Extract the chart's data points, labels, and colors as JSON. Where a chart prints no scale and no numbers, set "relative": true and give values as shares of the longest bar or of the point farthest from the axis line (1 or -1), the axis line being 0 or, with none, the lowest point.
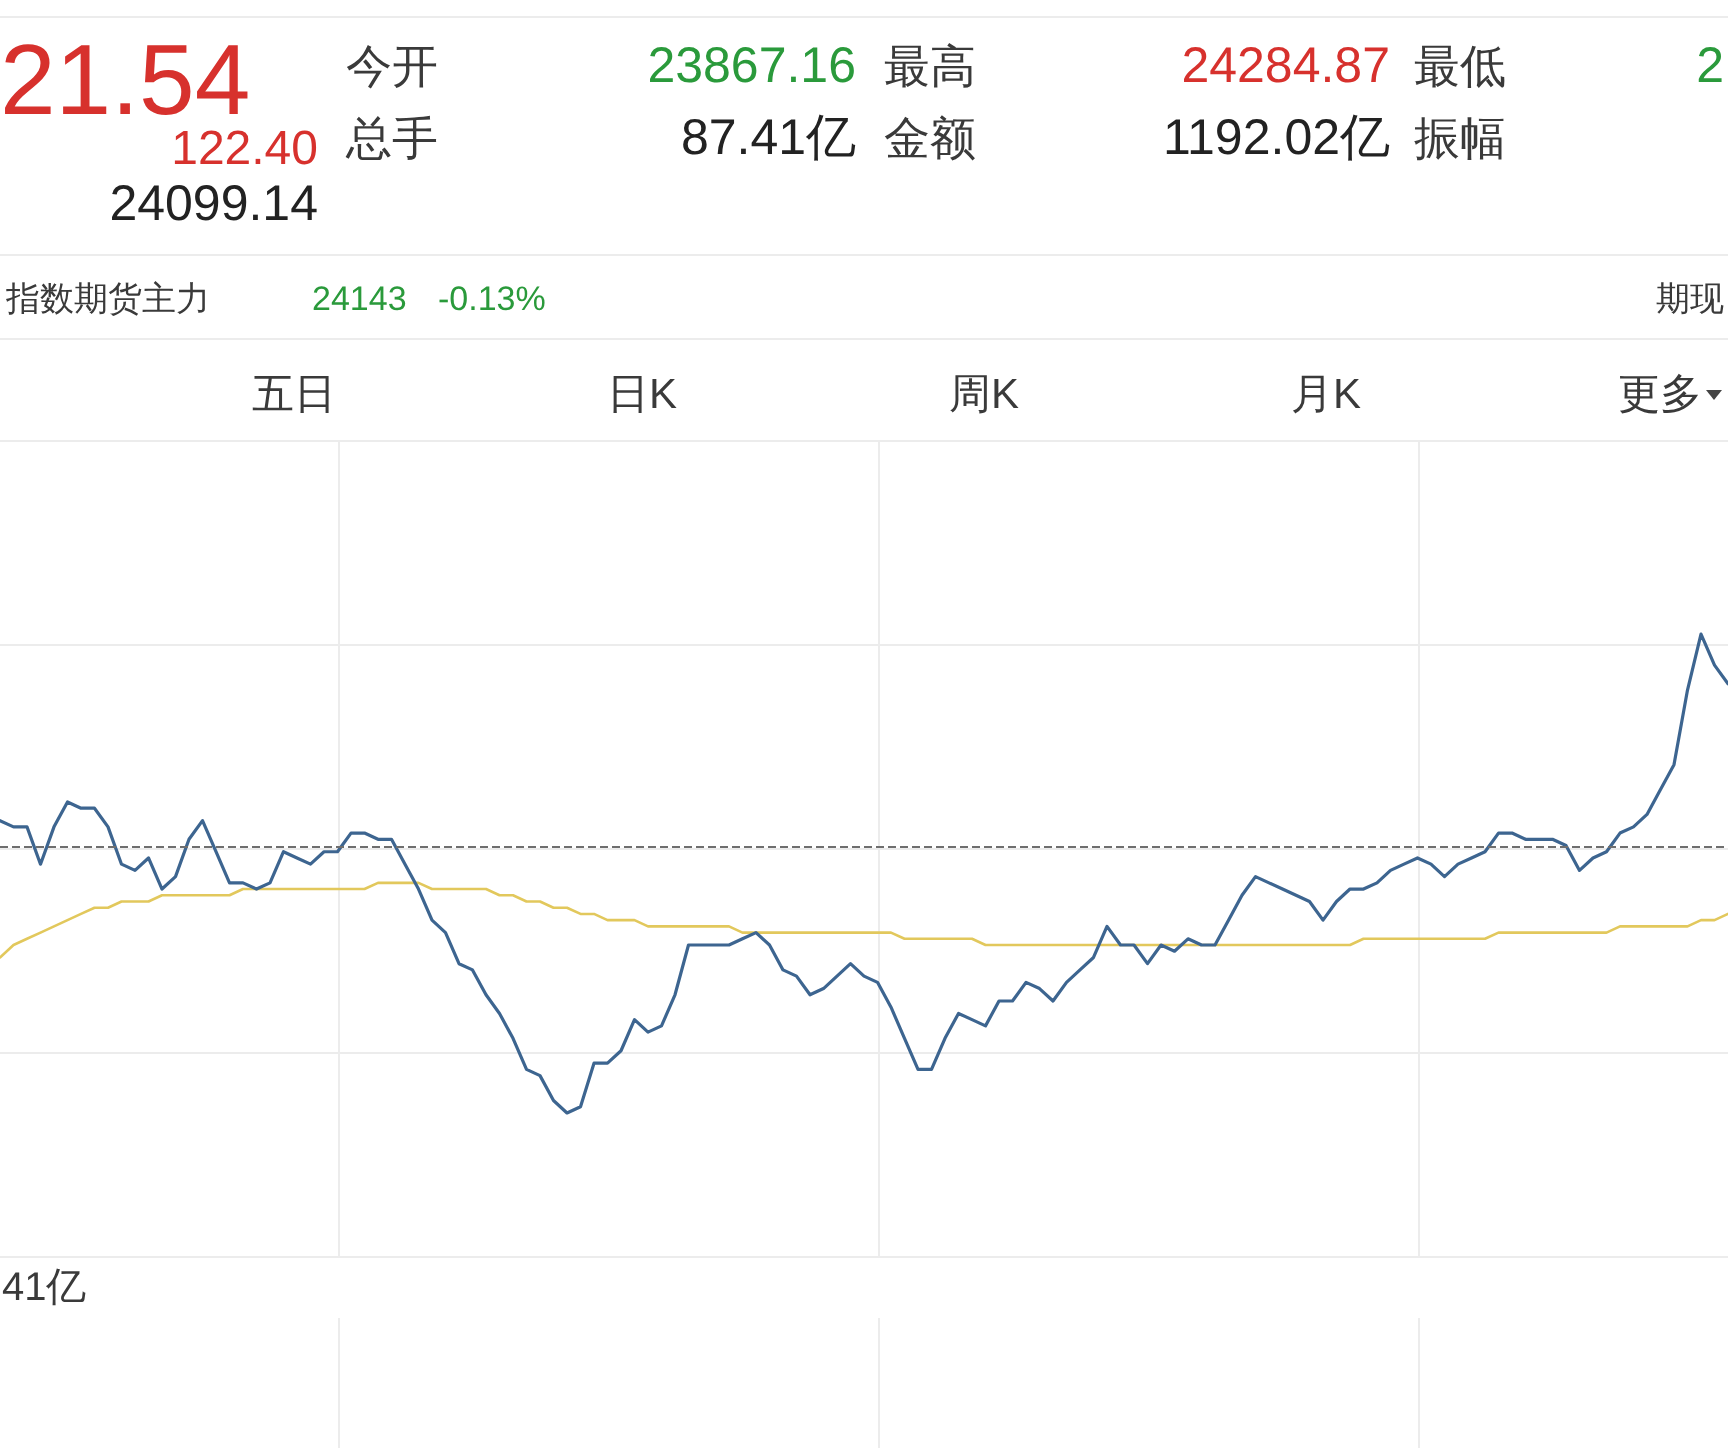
{
  "chart_data": {
    "type": "line",
    "relative": true,
    "grid": true,
    "categories": [
      null,
      null,
      null,
      null,
      null,
      null,
      null,
      null,
      null,
      null,
      null,
      null,
      null,
      null,
      null,
      null,
      null,
      null,
      null,
      null,
      null,
      null,
      null,
      null,
      null,
      null,
      null,
      null,
      null,
      null,
      null,
      null,
      null,
      null,
      null,
      null,
      null,
      null,
      null,
      null,
      null,
      null,
      null,
      null,
      null,
      null,
      null,
      null,
      null,
      null,
      null,
      null,
      null,
      null,
      null,
      null,
      null,
      null,
      null,
      null,
      null,
      null,
      null,
      null,
      null,
      null,
      null,
      null,
      null,
      null,
      null,
      null,
      null,
      null,
      null,
      null,
      null,
      null,
      null,
      null,
      null,
      null,
      null,
      null,
      null,
      null,
      null,
      null,
      null,
      null,
      null,
      null,
      null,
      null,
      null,
      null,
      null,
      null,
      null,
      null,
      null,
      null,
      null,
      null,
      null,
      null,
      null,
      null,
      null,
      null,
      null,
      null,
      null,
      null,
      null,
      null,
      null,
      null,
      null,
      null,
      null,
      null,
      null,
      null,
      null,
      null,
      null,
      null,
      null
    ],
    "series": [
      {
        "color": "#3d6590",
        "values": [
          0.7,
          0.69,
          0.69,
          0.63,
          0.69,
          0.73,
          0.72,
          0.72,
          0.69,
          0.63,
          0.62,
          0.64,
          0.59,
          0.61,
          0.67,
          0.7,
          0.65,
          0.6,
          0.6,
          0.59,
          0.6,
          0.65,
          0.64,
          0.63,
          0.65,
          0.65,
          0.68,
          0.68,
          0.67,
          0.67,
          0.63,
          0.59,
          0.54,
          0.52,
          0.47,
          0.46,
          0.42,
          0.39,
          0.35,
          0.3,
          0.29,
          0.25,
          0.23,
          0.24,
          0.31,
          0.31,
          0.33,
          0.38,
          0.36,
          0.37,
          0.42,
          0.5,
          0.5,
          0.5,
          0.5,
          0.51,
          0.52,
          0.5,
          0.46,
          0.45,
          0.42,
          0.43,
          0.45,
          0.47,
          0.45,
          0.44,
          0.4,
          0.35,
          0.3,
          0.3,
          0.35,
          0.39,
          0.38,
          0.37,
          0.41,
          0.41,
          0.44,
          0.43,
          0.41,
          0.44,
          0.46,
          0.48,
          0.53,
          0.5,
          0.5,
          0.47,
          0.5,
          0.49,
          0.51,
          0.5,
          0.5,
          0.54,
          0.58,
          0.61,
          0.6,
          0.59,
          0.58,
          0.57,
          0.54,
          0.57,
          0.59,
          0.59,
          0.6,
          0.62,
          0.63,
          0.64,
          0.63,
          0.61,
          0.63,
          0.64,
          0.65,
          0.68,
          0.68,
          0.67,
          0.67,
          0.67,
          0.66,
          0.62,
          0.64,
          0.65,
          0.68,
          0.69,
          0.71,
          0.75,
          0.79,
          0.91,
          1,
          0.95,
          0.92
        ]
      },
      {
        "color": "#e2c85c",
        "values": [
          0.48,
          0.5,
          0.51,
          0.52,
          0.53,
          0.54,
          0.55,
          0.56,
          0.56,
          0.57,
          0.57,
          0.57,
          0.58,
          0.58,
          0.58,
          0.58,
          0.58,
          0.58,
          0.59,
          0.59,
          0.59,
          0.59,
          0.59,
          0.59,
          0.59,
          0.59,
          0.59,
          0.59,
          0.6,
          0.6,
          0.6,
          0.6,
          0.59,
          0.59,
          0.59,
          0.59,
          0.59,
          0.58,
          0.58,
          0.57,
          0.57,
          0.56,
          0.56,
          0.55,
          0.55,
          0.54,
          0.54,
          0.54,
          0.53,
          0.53,
          0.53,
          0.53,
          0.53,
          0.53,
          0.53,
          0.52,
          0.52,
          0.52,
          0.52,
          0.52,
          0.52,
          0.52,
          0.52,
          0.52,
          0.52,
          0.52,
          0.52,
          0.51,
          0.51,
          0.51,
          0.51,
          0.51,
          0.51,
          0.5,
          0.5,
          0.5,
          0.5,
          0.5,
          0.5,
          0.5,
          0.5,
          0.5,
          0.5,
          0.5,
          0.5,
          0.5,
          0.5,
          0.5,
          0.5,
          0.5,
          0.5,
          0.5,
          0.5,
          0.5,
          0.5,
          0.5,
          0.5,
          0.5,
          0.5,
          0.5,
          0.5,
          0.51,
          0.51,
          0.51,
          0.51,
          0.51,
          0.51,
          0.51,
          0.51,
          0.51,
          0.51,
          0.52,
          0.52,
          0.52,
          0.52,
          0.52,
          0.52,
          0.52,
          0.52,
          0.52,
          0.53,
          0.53,
          0.53,
          0.53,
          0.53,
          0.53,
          0.54,
          0.54,
          0.55
        ]
      }
    ],
    "ref_lines": [
      {
        "axis": "y",
        "value": 0.66,
        "color": "#6e6e6e",
        "line_style": "dashed"
      }
    ],
    "annotations": [
      "21.54",
      "122.40",
      "24099.14",
      "今开",
      "23867.16",
      "最高",
      "24284.87",
      "最低",
      "2",
      "总手",
      "87.41亿",
      "金额",
      "1192.02亿",
      "振幅",
      "指数期货主力",
      "24143",
      "-0.13%",
      "期现",
      "五日",
      "日K",
      "周K",
      "月K",
      "更多",
      "41亿"
    ]
  }
}
